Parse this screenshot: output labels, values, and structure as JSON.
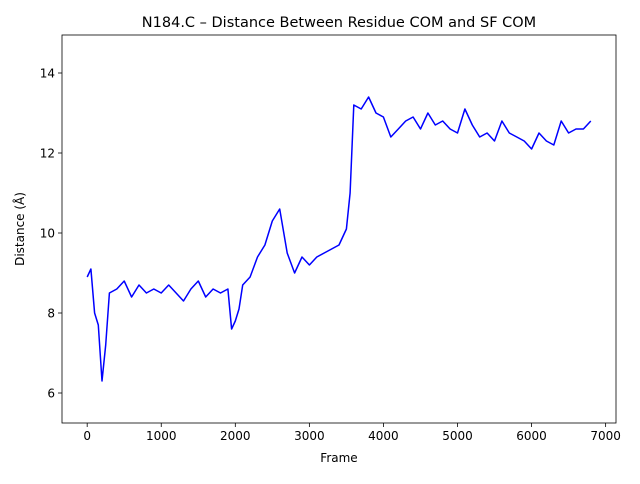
{
  "chart_data": {
    "type": "line",
    "title": "N184.C – Distance Between Residue COM and SF COM",
    "xlabel": "Frame",
    "ylabel": "Distance (Å)",
    "xlim": [
      -340,
      7140
    ],
    "ylim": [
      5.25,
      14.95
    ],
    "xticks": [
      0,
      1000,
      2000,
      3000,
      4000,
      5000,
      6000,
      7000
    ],
    "xtick_labels": [
      "0",
      "1000",
      "2000",
      "3000",
      "4000",
      "5000",
      "6000",
      "7000"
    ],
    "yticks": [
      6,
      8,
      10,
      12,
      14
    ],
    "ytick_labels": [
      "6",
      "8",
      "10",
      "12",
      "14"
    ],
    "grid": false,
    "legend": "none",
    "series": [
      {
        "color": "#0000ff",
        "x": [
          0,
          50,
          100,
          150,
          200,
          250,
          300,
          400,
          500,
          600,
          700,
          800,
          900,
          1000,
          1100,
          1200,
          1300,
          1400,
          1500,
          1600,
          1700,
          1800,
          1900,
          1950,
          2000,
          2050,
          2100,
          2200,
          2300,
          2400,
          2500,
          2600,
          2700,
          2800,
          2900,
          3000,
          3100,
          3200,
          3300,
          3400,
          3500,
          3550,
          3600,
          3700,
          3800,
          3900,
          4000,
          4100,
          4200,
          4300,
          4400,
          4500,
          4600,
          4700,
          4800,
          4900,
          5000,
          5100,
          5200,
          5300,
          5400,
          5500,
          5600,
          5700,
          5800,
          5900,
          6000,
          6100,
          6200,
          6300,
          6400,
          6500,
          6600,
          6700,
          6800
        ],
        "y": [
          8.9,
          9.1,
          8.0,
          7.7,
          6.3,
          7.2,
          8.5,
          8.6,
          8.8,
          8.4,
          8.7,
          8.5,
          8.6,
          8.5,
          8.7,
          8.5,
          8.3,
          8.6,
          8.8,
          8.4,
          8.6,
          8.5,
          8.6,
          7.6,
          7.8,
          8.1,
          8.7,
          8.9,
          9.4,
          9.7,
          10.3,
          10.6,
          9.5,
          9.0,
          9.4,
          9.2,
          9.4,
          9.5,
          9.6,
          9.7,
          10.1,
          11.0,
          13.2,
          13.1,
          13.4,
          13.0,
          12.9,
          12.4,
          12.6,
          12.8,
          12.9,
          12.6,
          13.0,
          12.7,
          12.8,
          12.6,
          12.5,
          13.1,
          12.7,
          12.4,
          12.5,
          12.3,
          12.8,
          12.5,
          12.4,
          12.3,
          12.1,
          12.5,
          12.3,
          12.2,
          12.8,
          12.5,
          12.6,
          12.6,
          12.8
        ]
      }
    ]
  }
}
